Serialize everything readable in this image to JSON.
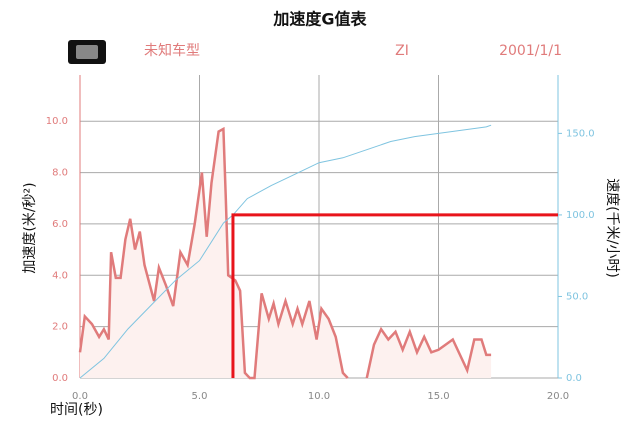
{
  "chart_data": {
    "type": "line",
    "title": "加速度G值表",
    "header_items": [
      "未知车型",
      "ZI",
      "2001/1/1"
    ],
    "xlabel": "时间(秒)",
    "ylabel": "加速度(米/秒²)",
    "y2label": "速度(千米/小时)",
    "xlim": [
      0,
      20
    ],
    "ylim": [
      0,
      11.8
    ],
    "y2lim": [
      0,
      185.8
    ],
    "xticks": [
      {
        "value": 0,
        "label": "0.0"
      },
      {
        "value": 5,
        "label": "5.0"
      },
      {
        "value": 10,
        "label": "10.0"
      },
      {
        "value": 15,
        "label": "15.0"
      },
      {
        "value": 20,
        "label": "20.0"
      }
    ],
    "yticks": [
      {
        "value": 0,
        "label": "0.0"
      },
      {
        "value": 2,
        "label": "2.0"
      },
      {
        "value": 4,
        "label": "4.0"
      },
      {
        "value": 6,
        "label": "6.0"
      },
      {
        "value": 8,
        "label": "8.0"
      },
      {
        "value": 10,
        "label": "10.0"
      }
    ],
    "y2ticks": [
      {
        "value": 0,
        "label": "0.0"
      },
      {
        "value": 50,
        "label": "50.0"
      },
      {
        "value": 100,
        "label": "100.0"
      },
      {
        "value": 150,
        "label": "150.0"
      }
    ],
    "grid": true,
    "series": [
      {
        "name": "加速度",
        "color": "#e07b7b",
        "fill": "#fdf1ef",
        "x": [
          0,
          0.2,
          0.5,
          0.8,
          1.0,
          1.2,
          1.3,
          1.5,
          1.7,
          1.9,
          2.1,
          2.3,
          2.5,
          2.7,
          2.9,
          3.1,
          3.3,
          3.6,
          3.9,
          4.2,
          4.5,
          4.8,
          5.1,
          5.3,
          5.5,
          5.8,
          6.0,
          6.1,
          6.2,
          6.5,
          6.7,
          6.9,
          7.1,
          7.3,
          7.6,
          7.9,
          8.1,
          8.3,
          8.6,
          8.9,
          9.1,
          9.3,
          9.6,
          9.9,
          10.1,
          10.4,
          10.7,
          11.0,
          11.2,
          11.6,
          12.0,
          12.3,
          12.6,
          12.9,
          13.2,
          13.5,
          13.8,
          14.1,
          14.4,
          14.7,
          15.0,
          15.3,
          15.6,
          15.9,
          16.2,
          16.5,
          16.8,
          17.0,
          17.2
        ],
        "values": [
          1.0,
          2.4,
          2.1,
          1.6,
          1.9,
          1.5,
          4.9,
          3.9,
          3.9,
          5.4,
          6.2,
          5.0,
          5.7,
          4.4,
          3.7,
          3.0,
          4.3,
          3.6,
          2.8,
          4.9,
          4.4,
          6.0,
          8.0,
          5.5,
          7.6,
          9.6,
          9.7,
          7.0,
          4.0,
          3.8,
          3.4,
          0.2,
          0.0,
          0.0,
          3.3,
          2.3,
          2.9,
          2.1,
          3.0,
          2.1,
          2.7,
          2.1,
          3.0,
          1.5,
          2.7,
          2.3,
          1.6,
          0.2,
          0.0,
          null,
          0.0,
          1.3,
          1.9,
          1.5,
          1.8,
          1.1,
          1.8,
          1.0,
          1.6,
          1.0,
          1.1,
          1.3,
          1.5,
          0.9,
          0.3,
          1.5,
          1.5,
          0.9,
          0.9
        ]
      },
      {
        "name": "速度",
        "color": "#7fc4e0",
        "axis": "y2",
        "x": [
          0,
          1,
          2,
          3,
          4,
          5,
          6,
          6.4,
          7,
          8,
          9,
          10,
          11,
          12,
          13,
          14,
          15,
          16,
          17,
          17.2
        ],
        "values": [
          0,
          12,
          30,
          45,
          60,
          72,
          95,
          100,
          110,
          118,
          125,
          132,
          135,
          140,
          145,
          148,
          150,
          152,
          154,
          155
        ]
      }
    ],
    "marker": {
      "x": 6.4,
      "y": 100,
      "color": "#e8141b"
    }
  }
}
